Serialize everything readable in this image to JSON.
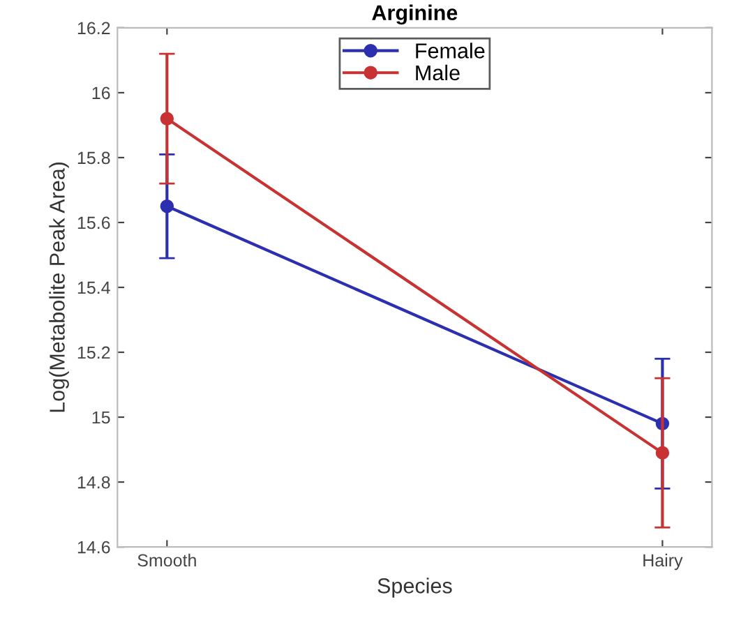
{
  "chart_data": {
    "type": "line",
    "title": "Arginine",
    "xlabel": "Species",
    "ylabel": "Log(Metabolite Peak Area)",
    "categories": [
      "Smooth",
      "Hairy"
    ],
    "series": [
      {
        "name": "Female",
        "color": "#2b2fb0",
        "values": [
          15.65,
          14.98
        ],
        "errors": [
          0.16,
          0.2
        ]
      },
      {
        "name": "Male",
        "color": "#c83232",
        "values": [
          15.92,
          14.89
        ],
        "errors": [
          0.2,
          0.23
        ]
      }
    ],
    "ylim": [
      14.6,
      16.2
    ],
    "yticks": [
      14.6,
      14.8,
      15,
      15.2,
      15.4,
      15.6,
      15.8,
      16,
      16.2
    ],
    "marker": "circle",
    "legend": "top",
    "grid": false
  }
}
